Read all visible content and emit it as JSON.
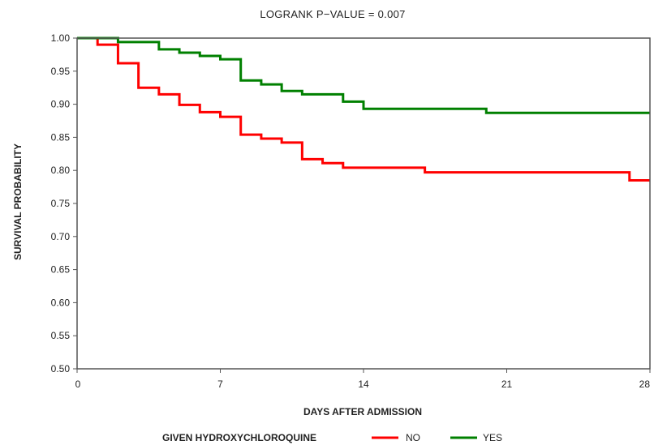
{
  "chart_data": {
    "type": "line",
    "title": "LOGRANK P−VALUE = 0.007",
    "xlabel": "DAYS AFTER ADMISSION",
    "ylabel": "SURVIVAL PROBABILITY",
    "xlim": [
      0,
      28
    ],
    "ylim": [
      0.5,
      1.0
    ],
    "x_ticks": [
      "0",
      "7",
      "14",
      "21",
      "28"
    ],
    "x_tick_values": [
      0,
      7,
      14,
      21,
      28
    ],
    "y_ticks": [
      "0.50",
      "0.55",
      "0.60",
      "0.65",
      "0.70",
      "0.75",
      "0.80",
      "0.85",
      "0.90",
      "0.95",
      "1.00"
    ],
    "y_tick_values": [
      0.5,
      0.55,
      0.6,
      0.65,
      0.7,
      0.75,
      0.8,
      0.85,
      0.9,
      0.95,
      1.0
    ],
    "grid": false,
    "legend_position": "bottom",
    "legend_title": "GIVEN HYDROXYCHLOROQUINE",
    "series": [
      {
        "name": "NO",
        "color": "#ff0000",
        "steps": [
          [
            0,
            1.0
          ],
          [
            1,
            0.99
          ],
          [
            2,
            0.962
          ],
          [
            3,
            0.925
          ],
          [
            4,
            0.915
          ],
          [
            5,
            0.899
          ],
          [
            6,
            0.888
          ],
          [
            7,
            0.881
          ],
          [
            8,
            0.854
          ],
          [
            9,
            0.848
          ],
          [
            10,
            0.842
          ],
          [
            11,
            0.817
          ],
          [
            12,
            0.811
          ],
          [
            13,
            0.804
          ],
          [
            17,
            0.797
          ],
          [
            27,
            0.785
          ],
          [
            28,
            0.785
          ]
        ]
      },
      {
        "name": "YES",
        "color": "#008000",
        "steps": [
          [
            0,
            1.0
          ],
          [
            2,
            0.994
          ],
          [
            4,
            0.983
          ],
          [
            5,
            0.978
          ],
          [
            6,
            0.973
          ],
          [
            7,
            0.968
          ],
          [
            8,
            0.936
          ],
          [
            9,
            0.93
          ],
          [
            10,
            0.92
          ],
          [
            11,
            0.915
          ],
          [
            13,
            0.904
          ],
          [
            14,
            0.893
          ],
          [
            20,
            0.887
          ],
          [
            28,
            0.887
          ]
        ]
      }
    ]
  }
}
